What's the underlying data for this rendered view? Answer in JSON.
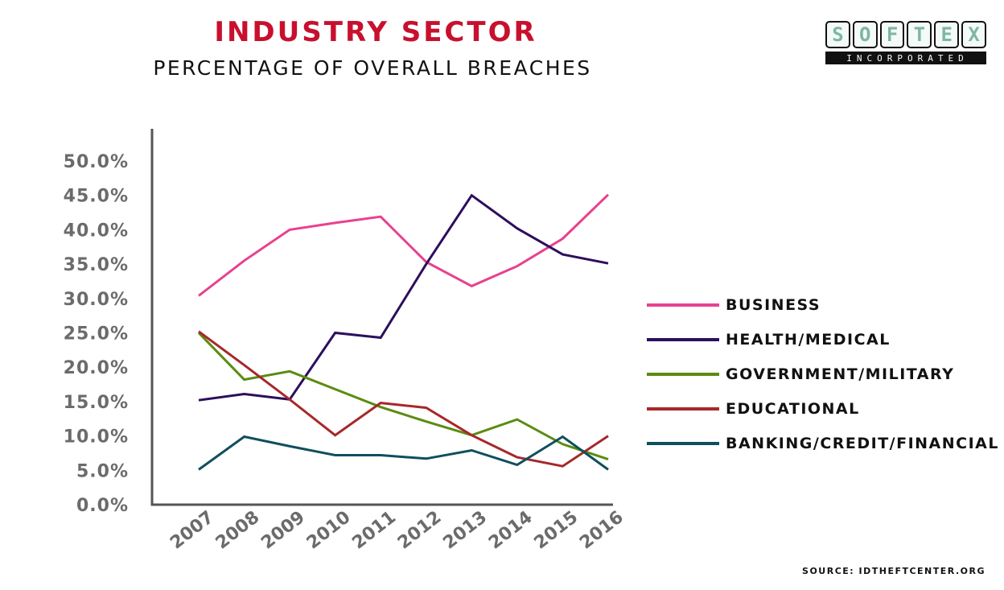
{
  "header": {
    "title": "INDUSTRY SECTOR",
    "subtitle": "PERCENTAGE OF OVERALL BREACHES",
    "title_color": "#c8102e"
  },
  "logo": {
    "letters": [
      "S",
      "O",
      "F",
      "T",
      "E",
      "X"
    ],
    "subtext": "INCORPORATED"
  },
  "source": "SOURCE: IDTHEFTCENTER.ORG",
  "chart_data": {
    "type": "line",
    "title": "INDUSTRY SECTOR",
    "subtitle": "PERCENTAGE OF OVERALL BREACHES",
    "x": [
      "2007",
      "2008",
      "2009",
      "2010",
      "2011",
      "2012",
      "2013",
      "2014",
      "2015",
      "2016"
    ],
    "ylim": [
      0,
      50
    ],
    "yticks": [
      "0.0%",
      "5.0%",
      "10.0%",
      "15.0%",
      "20.0%",
      "25.0%",
      "30.0%",
      "35.0%",
      "40.0%",
      "45.0%",
      "50.0%"
    ],
    "grid": false,
    "legend_position": "right",
    "series": [
      {
        "name": "BUSINESS",
        "color": "#e8418f",
        "values": [
          30.4,
          35.5,
          40.0,
          41.0,
          41.9,
          35.3,
          31.8,
          34.7,
          38.7,
          45.1
        ]
      },
      {
        "name": "HEALTH/MEDICAL",
        "color": "#2c0f5c",
        "values": [
          15.2,
          16.1,
          15.3,
          25.0,
          24.3,
          35.0,
          45.0,
          40.2,
          36.4,
          35.1
        ]
      },
      {
        "name": "GOVERNMENT/MILITARY",
        "color": "#5b8c12",
        "values": [
          25.0,
          18.2,
          19.4,
          16.8,
          14.2,
          12.1,
          10.1,
          12.4,
          8.8,
          6.6
        ]
      },
      {
        "name": "EDUCATIONAL",
        "color": "#a6282b",
        "values": [
          25.2,
          20.3,
          15.3,
          10.1,
          14.8,
          14.1,
          10.1,
          6.9,
          5.6,
          10.0
        ]
      },
      {
        "name": "BANKING/CREDIT/FINANCIAL",
        "color": "#0f4f5e",
        "values": [
          5.1,
          9.9,
          8.5,
          7.2,
          7.2,
          6.7,
          7.9,
          5.8,
          9.9,
          5.1
        ]
      }
    ]
  }
}
